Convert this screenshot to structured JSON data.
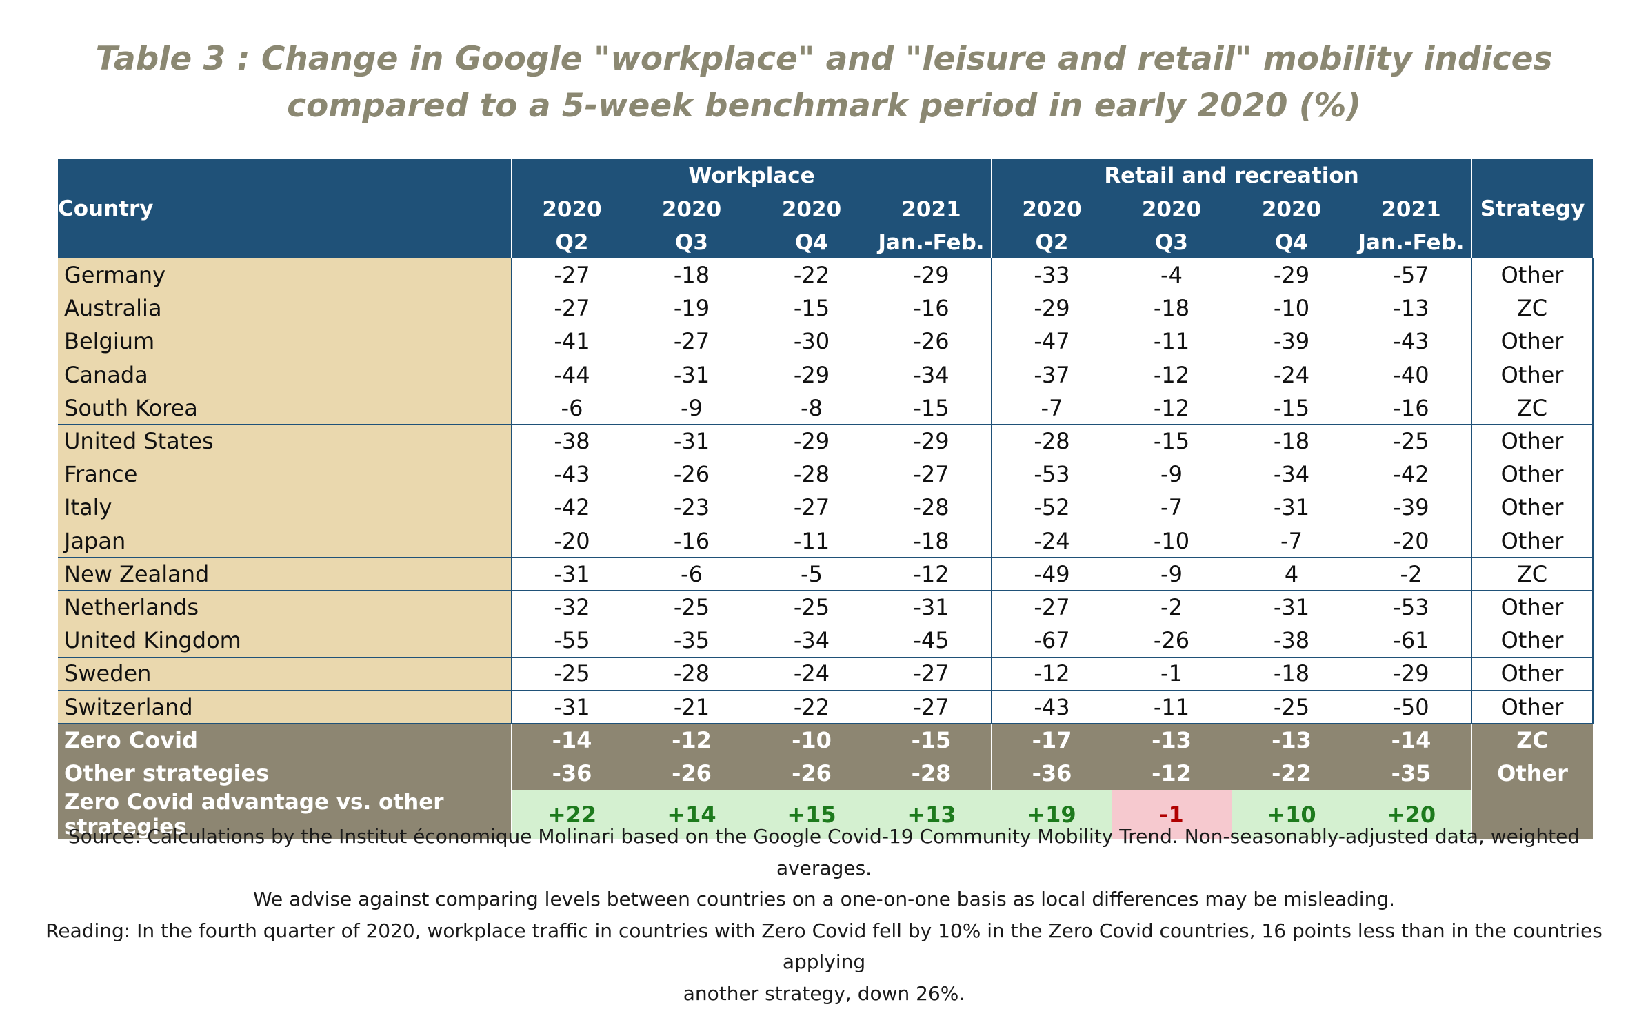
{
  "title": "Table 3 : Change in Google \"workplace\" and \"leisure and retail\" mobility indices compared to a 5-week benchmark period in early 2020 (%)",
  "header": {
    "country": "Country",
    "workplace": "Workplace",
    "retail": "Retail and recreation",
    "strategy": "Strategy",
    "periods": [
      {
        "year": "2020",
        "sub": "Q2"
      },
      {
        "year": "2020",
        "sub": "Q3"
      },
      {
        "year": "2020",
        "sub": "Q4"
      },
      {
        "year": "2021",
        "sub": "Jan.-Feb."
      },
      {
        "year": "2020",
        "sub": "Q2"
      },
      {
        "year": "2020",
        "sub": "Q3"
      },
      {
        "year": "2020",
        "sub": "Q4"
      },
      {
        "year": "2021",
        "sub": "Jan.-Feb."
      }
    ]
  },
  "rows": [
    {
      "country": "Germany",
      "values": [
        "-27",
        "-18",
        "-22",
        "-29",
        "-33",
        "-4",
        "-29",
        "-57"
      ],
      "strategy": "Other"
    },
    {
      "country": "Australia",
      "values": [
        "-27",
        "-19",
        "-15",
        "-16",
        "-29",
        "-18",
        "-10",
        "-13"
      ],
      "strategy": "ZC"
    },
    {
      "country": "Belgium",
      "values": [
        "-41",
        "-27",
        "-30",
        "-26",
        "-47",
        "-11",
        "-39",
        "-43"
      ],
      "strategy": "Other"
    },
    {
      "country": "Canada",
      "values": [
        "-44",
        "-31",
        "-29",
        "-34",
        "-37",
        "-12",
        "-24",
        "-40"
      ],
      "strategy": "Other"
    },
    {
      "country": "South Korea",
      "values": [
        "-6",
        "-9",
        "-8",
        "-15",
        "-7",
        "-12",
        "-15",
        "-16"
      ],
      "strategy": "ZC"
    },
    {
      "country": "United States",
      "values": [
        "-38",
        "-31",
        "-29",
        "-29",
        "-28",
        "-15",
        "-18",
        "-25"
      ],
      "strategy": "Other"
    },
    {
      "country": "France",
      "values": [
        "-43",
        "-26",
        "-28",
        "-27",
        "-53",
        "-9",
        "-34",
        "-42"
      ],
      "strategy": "Other"
    },
    {
      "country": "Italy",
      "values": [
        "-42",
        "-23",
        "-27",
        "-28",
        "-52",
        "-7",
        "-31",
        "-39"
      ],
      "strategy": "Other"
    },
    {
      "country": "Japan",
      "values": [
        "-20",
        "-16",
        "-11",
        "-18",
        "-24",
        "-10",
        "-7",
        "-20"
      ],
      "strategy": "Other"
    },
    {
      "country": "New Zealand",
      "values": [
        "-31",
        "-6",
        "-5",
        "-12",
        "-49",
        "-9",
        "4",
        "-2"
      ],
      "strategy": "ZC"
    },
    {
      "country": "Netherlands",
      "values": [
        "-32",
        "-25",
        "-25",
        "-31",
        "-27",
        "-2",
        "-31",
        "-53"
      ],
      "strategy": "Other"
    },
    {
      "country": "United Kingdom",
      "values": [
        "-55",
        "-35",
        "-34",
        "-45",
        "-67",
        "-26",
        "-38",
        "-61"
      ],
      "strategy": "Other"
    },
    {
      "country": "Sweden",
      "values": [
        "-25",
        "-28",
        "-24",
        "-27",
        "-12",
        "-1",
        "-18",
        "-29"
      ],
      "strategy": "Other"
    },
    {
      "country": "Switzerland",
      "values": [
        "-31",
        "-21",
        "-22",
        "-27",
        "-43",
        "-11",
        "-25",
        "-50"
      ],
      "strategy": "Other"
    }
  ],
  "summary": [
    {
      "label": "Zero Covid",
      "values": [
        "-14",
        "-12",
        "-10",
        "-15",
        "-17",
        "-13",
        "-13",
        "-14"
      ],
      "strategy": "ZC"
    },
    {
      "label": "Other strategies",
      "values": [
        "-36",
        "-26",
        "-26",
        "-28",
        "-36",
        "-12",
        "-22",
        "-35"
      ],
      "strategy": "Other"
    }
  ],
  "advantage": {
    "label": "Zero Covid advantage vs. other strategies",
    "values": [
      "+22",
      "+14",
      "+15",
      "+13",
      "+19",
      "-1",
      "+10",
      "+20"
    ],
    "colors": {
      "positive_bg": "#d4f0d0",
      "positive_text": "#1d7a1d",
      "negative_bg": "#f6c9cf",
      "negative_text": "#b00000"
    }
  },
  "notes": [
    "Source: Calculations by the Institut économique Molinari based on the Google Covid-19 Community Mobility Trend. Non-seasonably-adjusted data, weighted averages.",
    "We advise against comparing levels between countries on a one-on-one basis as local differences may be misleading.",
    "Reading: In the fourth quarter of 2020, workplace traffic in countries with Zero Covid fell by 10% in the Zero Covid countries, 16 points less than in the countries applying",
    "another strategy, down 26%."
  ],
  "colors": {
    "header_bg": "#1f5178",
    "country_bg": "#ead8ae",
    "summary_bg": "#8d8672",
    "title": "#8b8872"
  }
}
